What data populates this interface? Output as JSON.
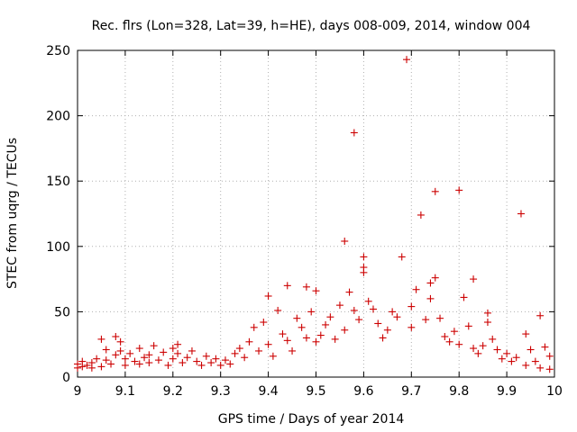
{
  "chart_data": {
    "type": "scatter",
    "title": "Rec. flrs (Lon=328, Lat=39, h=HE), days 008-009, 2014, window 004",
    "xlabel": "GPS time / Days of year 2014",
    "ylabel": "STEC from uqrg / TECUs",
    "xlim": [
      9,
      10
    ],
    "ylim": [
      0,
      250
    ],
    "xticks": [
      9,
      9.1,
      9.2,
      9.3,
      9.4,
      9.5,
      9.6,
      9.7,
      9.8,
      9.9,
      10
    ],
    "xtick_labels": [
      "9",
      "9.1",
      "9.2",
      "9.3",
      "9.4",
      "9.5",
      "9.6",
      "9.7",
      "9.8",
      "9.9",
      "10"
    ],
    "yticks": [
      0,
      50,
      100,
      150,
      200,
      250
    ],
    "ytick_labels": [
      "0",
      "50",
      "100",
      "150",
      "200",
      "250"
    ],
    "grid": true,
    "marker": "+",
    "series": [
      {
        "name": "STEC",
        "color": "#cc0000",
        "points": [
          [
            9.0,
            10
          ],
          [
            9.0,
            7
          ],
          [
            9.01,
            12
          ],
          [
            9.01,
            8
          ],
          [
            9.02,
            9
          ],
          [
            9.03,
            11
          ],
          [
            9.03,
            7
          ],
          [
            9.04,
            14
          ],
          [
            9.05,
            29
          ],
          [
            9.05,
            8
          ],
          [
            9.06,
            13
          ],
          [
            9.06,
            21
          ],
          [
            9.07,
            10
          ],
          [
            9.08,
            31
          ],
          [
            9.08,
            17
          ],
          [
            9.09,
            27
          ],
          [
            9.09,
            20
          ],
          [
            9.1,
            14
          ],
          [
            9.1,
            9
          ],
          [
            9.11,
            18
          ],
          [
            9.12,
            12
          ],
          [
            9.13,
            22
          ],
          [
            9.13,
            10
          ],
          [
            9.14,
            15
          ],
          [
            9.15,
            11
          ],
          [
            9.15,
            17
          ],
          [
            9.16,
            24
          ],
          [
            9.17,
            13
          ],
          [
            9.18,
            19
          ],
          [
            9.19,
            9
          ],
          [
            9.2,
            22
          ],
          [
            9.2,
            14
          ],
          [
            9.21,
            25
          ],
          [
            9.21,
            18
          ],
          [
            9.22,
            11
          ],
          [
            9.23,
            15
          ],
          [
            9.24,
            20
          ],
          [
            9.25,
            12
          ],
          [
            9.26,
            9
          ],
          [
            9.27,
            16
          ],
          [
            9.28,
            11
          ],
          [
            9.29,
            14
          ],
          [
            9.3,
            9
          ],
          [
            9.31,
            13
          ],
          [
            9.32,
            10
          ],
          [
            9.33,
            18
          ],
          [
            9.34,
            22
          ],
          [
            9.35,
            15
          ],
          [
            9.36,
            27
          ],
          [
            9.37,
            38
          ],
          [
            9.38,
            20
          ],
          [
            9.39,
            42
          ],
          [
            9.4,
            62
          ],
          [
            9.4,
            25
          ],
          [
            9.41,
            16
          ],
          [
            9.42,
            51
          ],
          [
            9.43,
            33
          ],
          [
            9.44,
            70
          ],
          [
            9.44,
            28
          ],
          [
            9.45,
            20
          ],
          [
            9.46,
            45
          ],
          [
            9.47,
            38
          ],
          [
            9.48,
            69
          ],
          [
            9.48,
            30
          ],
          [
            9.49,
            50
          ],
          [
            9.5,
            66
          ],
          [
            9.5,
            27
          ],
          [
            9.51,
            32
          ],
          [
            9.52,
            40
          ],
          [
            9.53,
            46
          ],
          [
            9.54,
            29
          ],
          [
            9.55,
            55
          ],
          [
            9.56,
            104
          ],
          [
            9.56,
            36
          ],
          [
            9.57,
            65
          ],
          [
            9.58,
            51
          ],
          [
            9.58,
            187
          ],
          [
            9.59,
            44
          ],
          [
            9.6,
            92
          ],
          [
            9.6,
            80
          ],
          [
            9.6,
            84
          ],
          [
            9.61,
            58
          ],
          [
            9.62,
            52
          ],
          [
            9.63,
            41
          ],
          [
            9.64,
            30
          ],
          [
            9.65,
            36
          ],
          [
            9.66,
            50
          ],
          [
            9.67,
            46
          ],
          [
            9.68,
            92
          ],
          [
            9.69,
            243
          ],
          [
            9.7,
            38
          ],
          [
            9.7,
            54
          ],
          [
            9.71,
            67
          ],
          [
            9.72,
            124
          ],
          [
            9.73,
            44
          ],
          [
            9.74,
            72
          ],
          [
            9.74,
            60
          ],
          [
            9.75,
            142
          ],
          [
            9.75,
            76
          ],
          [
            9.76,
            45
          ],
          [
            9.77,
            31
          ],
          [
            9.78,
            27
          ],
          [
            9.79,
            35
          ],
          [
            9.8,
            143
          ],
          [
            9.8,
            25
          ],
          [
            9.81,
            61
          ],
          [
            9.82,
            39
          ],
          [
            9.83,
            75
          ],
          [
            9.83,
            22
          ],
          [
            9.84,
            18
          ],
          [
            9.85,
            24
          ],
          [
            9.86,
            49
          ],
          [
            9.86,
            42
          ],
          [
            9.87,
            29
          ],
          [
            9.88,
            21
          ],
          [
            9.89,
            14
          ],
          [
            9.9,
            18
          ],
          [
            9.91,
            12
          ],
          [
            9.92,
            15
          ],
          [
            9.93,
            125
          ],
          [
            9.94,
            33
          ],
          [
            9.94,
            9
          ],
          [
            9.95,
            21
          ],
          [
            9.96,
            12
          ],
          [
            9.97,
            47
          ],
          [
            9.97,
            7
          ],
          [
            9.98,
            23
          ],
          [
            9.99,
            16
          ],
          [
            9.99,
            6
          ]
        ]
      }
    ]
  }
}
